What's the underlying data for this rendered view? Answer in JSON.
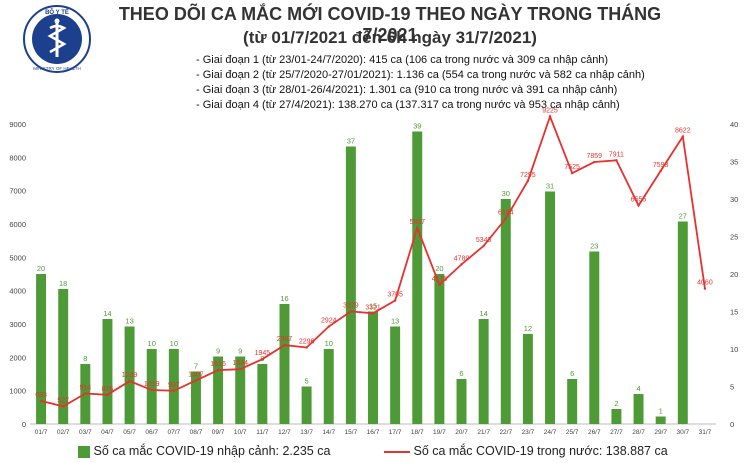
{
  "header": {
    "title": "THEO DÕI CA MẮC MỚI COVID-19 THEO NGÀY TRONG THÁNG 7/2021",
    "subtitle": "(từ 01/7/2021 đến 6h ngày 31/7/2021)",
    "phases": [
      "- Giai đoạn 1 (từ 23/01-24/7/2020): 415 ca (106 ca trong nước và 309 ca nhập cảnh)",
      "- Giai đoạn 2 (từ 25/7/2020-27/01/2021): 1.136 ca (554 ca trong nước và 582 ca nhập cảnh)",
      "- Giai đoạn 3 (từ 28/01-26/4/2021): 1.301 ca (910 ca trong nước và 391 ca nhập cảnh)",
      "- Giai đoạn 4 (từ 27/4/2021): 138.270 ca (137.317 ca trong nước và 953 ca nhập cảnh)"
    ],
    "logo_text": "BỘ Y TẾ",
    "logo_ring_text": "MINISTRY OF HEALTH"
  },
  "chart_data": {
    "type": "bar+line",
    "categories": [
      "01/7",
      "02/7",
      "03/7",
      "04/7",
      "05/7",
      "06/7",
      "07/7",
      "08/7",
      "09/7",
      "10/7",
      "11/7",
      "12/7",
      "13/7",
      "14/7",
      "15/7",
      "16/7",
      "17/7",
      "18/7",
      "19/7",
      "20/7",
      "21/7",
      "22/7",
      "23/7",
      "24/7",
      "25/7",
      "26/7",
      "27/7",
      "28/7",
      "29/7",
      "30/7",
      "31/7"
    ],
    "series": [
      {
        "name": "Số ca mắc COVID-19 nhập cảnh: 2.235 ca",
        "kind": "bar",
        "axis": "right",
        "color": "#4e9a36",
        "values": [
          20,
          18,
          8,
          14,
          13,
          10,
          10,
          7,
          9,
          9,
          8,
          16,
          5,
          10,
          37,
          15,
          13,
          39,
          20,
          6,
          14,
          30,
          12,
          31,
          6,
          23,
          2,
          4,
          1,
          27,
          null
        ]
      },
      {
        "name": "Số ca mắc COVID-19 trong nước: 138.887 ca",
        "kind": "line",
        "axis": "left",
        "color": "#e8302f",
        "values": [
          693,
          527,
          914,
          876,
          1289,
          1019,
          997,
          1307,
          1616,
          1644,
          1945,
          2367,
          2296,
          2924,
          3379,
          3321,
          3705,
          5887,
          4175,
          4789,
          5343,
          6164,
          7295,
          9225,
          7525,
          7859,
          7911,
          6555,
          7593,
          8622,
          4060
        ]
      }
    ],
    "y_left": {
      "min": 0,
      "max": 9000,
      "ticks": [
        0,
        1000,
        2000,
        3000,
        4000,
        5000,
        6000,
        7000,
        8000,
        9000
      ]
    },
    "y_right": {
      "min": 0,
      "max": 40,
      "ticks": [
        0,
        5,
        10,
        15,
        20,
        25,
        30,
        35,
        40
      ]
    },
    "grid": false,
    "legend_position": "bottom"
  },
  "legend": {
    "bar_label": "Số ca mắc COVID-19 nhập cảnh: 2.235 ca",
    "line_label": "Số ca mắc COVID-19 trong nước: 138.887 ca"
  }
}
